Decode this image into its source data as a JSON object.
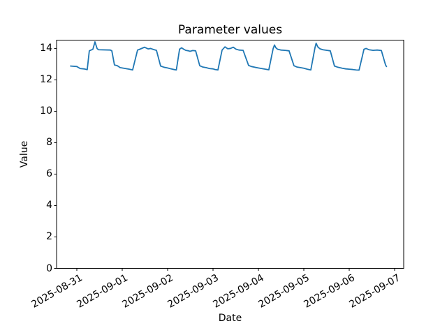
{
  "chart_data": {
    "type": "line",
    "title": "Parameter values",
    "xlabel": "Date",
    "ylabel": "Value",
    "line_color": "#1f77b4",
    "axis_color": "#000000",
    "background_color": "#ffffff",
    "grid": false,
    "legend": "none",
    "x_unit": "days since 2025-08-31 00:00",
    "x_tick_positions_days": [
      0,
      1,
      2,
      3,
      4,
      5,
      6,
      7
    ],
    "x_tick_labels": [
      "2025-08-31",
      "2025-09-01",
      "2025-09-02",
      "2025-09-03",
      "2025-09-04",
      "2025-09-05",
      "2025-09-06",
      "2025-09-07"
    ],
    "x_tick_rotation_deg": 30,
    "y_ticks": [
      0,
      2,
      4,
      6,
      8,
      10,
      12,
      14
    ],
    "xlim_days": [
      -0.446,
      7.2
    ],
    "ylim": [
      0,
      14.53
    ],
    "x_days": [
      -0.138,
      0.0,
      0.075,
      0.154,
      0.229,
      0.275,
      0.354,
      0.4,
      0.446,
      0.475,
      0.738,
      0.771,
      0.829,
      0.892,
      0.954,
      1.0,
      1.075,
      1.154,
      1.229,
      1.338,
      1.371,
      1.492,
      1.571,
      1.625,
      1.692,
      1.754,
      1.846,
      1.925,
      2.0,
      2.075,
      2.154,
      2.192,
      2.263,
      2.308,
      2.354,
      2.4,
      2.463,
      2.492,
      2.554,
      2.617,
      2.708,
      2.771,
      2.846,
      2.925,
      3.0,
      3.046,
      3.108,
      3.2,
      3.263,
      3.325,
      3.383,
      3.446,
      3.508,
      3.571,
      3.663,
      3.783,
      3.846,
      3.925,
      4.0,
      4.075,
      4.154,
      4.229,
      4.325,
      4.354,
      4.383,
      4.421,
      4.492,
      4.583,
      4.675,
      4.783,
      4.846,
      4.925,
      5.0,
      5.075,
      5.154,
      5.246,
      5.271,
      5.308,
      5.354,
      5.417,
      5.508,
      5.583,
      5.675,
      5.754,
      5.846,
      5.925,
      6.0,
      6.075,
      6.154,
      6.217,
      6.325,
      6.371,
      6.433,
      6.525,
      6.617,
      6.708,
      6.8,
      6.821
    ],
    "y": [
      12.88,
      12.85,
      12.72,
      12.7,
      12.65,
      13.85,
      13.95,
      14.42,
      14.0,
      13.92,
      13.9,
      13.85,
      12.95,
      12.9,
      12.78,
      12.76,
      12.72,
      12.68,
      12.63,
      13.9,
      13.93,
      14.08,
      13.97,
      14.0,
      13.93,
      13.88,
      12.88,
      12.8,
      12.76,
      12.7,
      12.65,
      12.63,
      13.95,
      14.04,
      13.95,
      13.88,
      13.85,
      13.82,
      13.87,
      13.85,
      12.9,
      12.82,
      12.78,
      12.72,
      12.7,
      12.66,
      12.63,
      13.9,
      14.1,
      13.98,
      14.0,
      14.08,
      13.95,
      13.9,
      13.88,
      12.92,
      12.85,
      12.8,
      12.76,
      12.72,
      12.68,
      12.64,
      14.0,
      14.22,
      14.05,
      13.95,
      13.9,
      13.88,
      13.85,
      12.9,
      12.82,
      12.78,
      12.74,
      12.68,
      12.63,
      14.05,
      14.33,
      14.1,
      13.98,
      13.92,
      13.88,
      13.85,
      12.88,
      12.8,
      12.74,
      12.7,
      12.68,
      12.66,
      12.63,
      12.62,
      13.95,
      14.0,
      13.92,
      13.88,
      13.9,
      13.87,
      12.95,
      12.85
    ]
  }
}
